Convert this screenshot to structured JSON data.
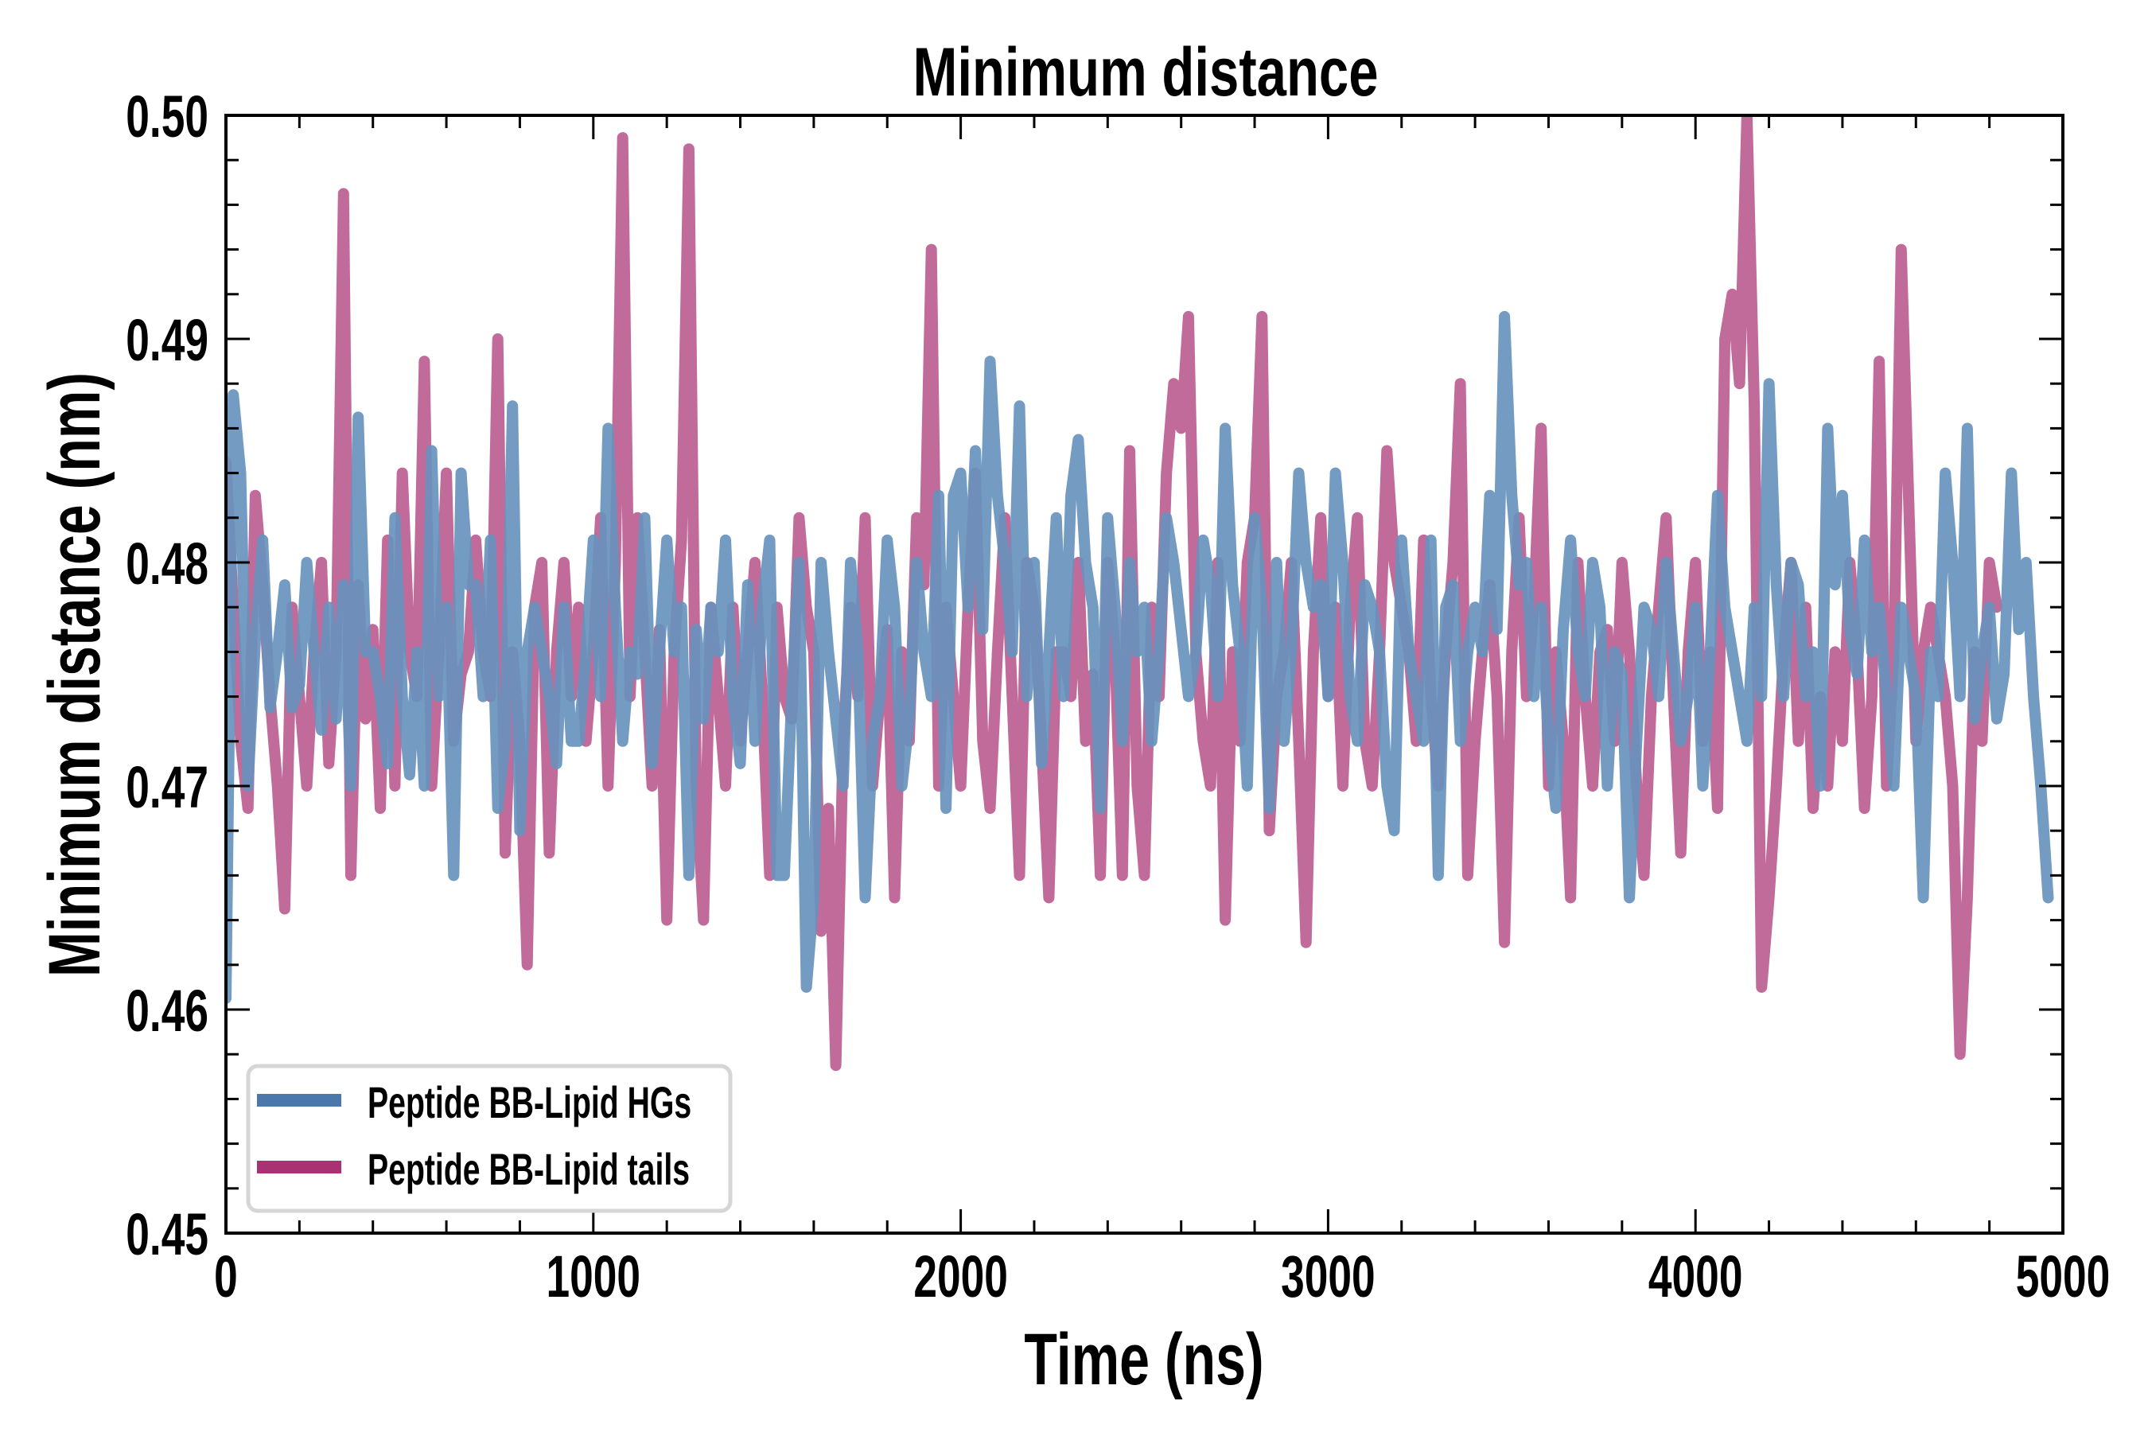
{
  "chart_data": {
    "type": "line",
    "title": "Minimum distance",
    "xlabel": "Time (ns)",
    "ylabel": "Minimum distance (nm)",
    "xlim": [
      0,
      5000
    ],
    "ylim": [
      0.45,
      0.5
    ],
    "x_ticks": [
      "0",
      "1000",
      "2000",
      "3000",
      "4000",
      "5000"
    ],
    "x_tick_values": [
      0,
      1000,
      2000,
      3000,
      4000,
      5000
    ],
    "x_minor_step": 200,
    "y_ticks": [
      "0.45",
      "0.46",
      "0.47",
      "0.48",
      "0.49",
      "0.50"
    ],
    "y_tick_values": [
      0.45,
      0.46,
      0.47,
      0.48,
      0.49,
      0.5
    ],
    "y_minor_step": 0.002,
    "grid": false,
    "legend_position": "lower-left",
    "x_step": 20,
    "series": [
      {
        "name": "Peptide BB-Lipid HGs",
        "color": "#4a78aa",
        "line_color": "#6893bd",
        "values": [
          0.4605,
          0.4875,
          0.484,
          0.47,
          0.4765,
          0.481,
          0.4735,
          0.476,
          0.479,
          0.4735,
          0.4745,
          0.48,
          0.476,
          0.4725,
          0.478,
          0.473,
          0.479,
          0.47,
          0.4865,
          0.476,
          0.476,
          0.474,
          0.471,
          0.482,
          0.474,
          0.4705,
          0.476,
          0.47,
          0.485,
          0.474,
          0.478,
          0.466,
          0.484,
          0.479,
          0.479,
          0.474,
          0.481,
          0.469,
          0.472,
          0.487,
          0.468,
          0.476,
          0.478,
          0.476,
          0.474,
          0.471,
          0.478,
          0.472,
          0.472,
          0.476,
          0.481,
          0.474,
          0.486,
          0.478,
          0.472,
          0.476,
          0.475,
          0.482,
          0.471,
          0.476,
          0.481,
          0.476,
          0.478,
          0.466,
          0.477,
          0.473,
          0.478,
          0.476,
          0.481,
          0.474,
          0.471,
          0.479,
          0.472,
          0.478,
          0.481,
          0.466,
          0.466,
          0.474,
          0.48,
          0.461,
          0.465,
          0.48,
          0.476,
          0.473,
          0.47,
          0.48,
          0.476,
          0.465,
          0.472,
          0.474,
          0.481,
          0.478,
          0.47,
          0.473,
          0.48,
          0.476,
          0.474,
          0.483,
          0.469,
          0.483,
          0.484,
          0.478,
          0.485,
          0.477,
          0.489,
          0.483,
          0.48,
          0.476,
          0.487,
          0.474,
          0.48,
          0.471,
          0.476,
          0.482,
          0.474,
          0.483,
          0.4855,
          0.48,
          0.478,
          0.469,
          0.482,
          0.478,
          0.472,
          0.48,
          0.476,
          0.478,
          0.472,
          0.476,
          0.482,
          0.48,
          0.477,
          0.474,
          0.476,
          0.481,
          0.479,
          0.474,
          0.486,
          0.479,
          0.476,
          0.47,
          0.482,
          0.478,
          0.469,
          0.48,
          0.472,
          0.476,
          0.484,
          0.48,
          0.478,
          0.479,
          0.474,
          0.484,
          0.48,
          0.474,
          0.472,
          0.479,
          0.478,
          0.476,
          0.47,
          0.468,
          0.481,
          0.476,
          0.474,
          0.472,
          0.481,
          0.466,
          0.478,
          0.479,
          0.472,
          0.476,
          0.478,
          0.476,
          0.483,
          0.477,
          0.491,
          0.483,
          0.479,
          0.48,
          0.474,
          0.478,
          0.472,
          0.469,
          0.477,
          0.481,
          0.476,
          0.474,
          0.48,
          0.478,
          0.47,
          0.476,
          0.475,
          0.465,
          0.472,
          0.478,
          0.477,
          0.474,
          0.48,
          0.476,
          0.472,
          0.474,
          0.478,
          0.47,
          0.476,
          0.483,
          0.478,
          0.476,
          0.474,
          0.472,
          0.478,
          0.474,
          0.488,
          0.479,
          0.474,
          0.48,
          0.479,
          0.474,
          0.476,
          0.47,
          0.486,
          0.479,
          0.483,
          0.477,
          0.475,
          0.481,
          0.476,
          0.478,
          0.474,
          0.47,
          0.478,
          0.476,
          0.474,
          0.465,
          0.476,
          0.474,
          0.484,
          0.48,
          0.474,
          0.486,
          0.473,
          0.476,
          0.478,
          0.473,
          0.475,
          0.484,
          0.477,
          0.48,
          0.474,
          0.47,
          0.465
        ]
      },
      {
        "name": "Peptide BB-Lipid tails",
        "color": "#a83272",
        "line_color": "#bb5e91",
        "values": [
          0.4845,
          0.478,
          0.472,
          0.469,
          0.483,
          0.479,
          0.474,
          0.47,
          0.4645,
          0.478,
          0.474,
          0.47,
          0.476,
          0.48,
          0.471,
          0.476,
          0.4965,
          0.466,
          0.479,
          0.473,
          0.477,
          0.469,
          0.481,
          0.47,
          0.484,
          0.476,
          0.474,
          0.489,
          0.47,
          0.476,
          0.484,
          0.472,
          0.475,
          0.476,
          0.481,
          0.476,
          0.474,
          0.49,
          0.467,
          0.476,
          0.472,
          0.462,
          0.478,
          0.48,
          0.467,
          0.476,
          0.48,
          0.474,
          0.478,
          0.472,
          0.476,
          0.482,
          0.47,
          0.48,
          0.499,
          0.474,
          0.482,
          0.476,
          0.47,
          0.477,
          0.464,
          0.476,
          0.481,
          0.4985,
          0.47,
          0.464,
          0.478,
          0.474,
          0.47,
          0.478,
          0.472,
          0.476,
          0.48,
          0.474,
          0.466,
          0.478,
          0.474,
          0.473,
          0.482,
          0.478,
          0.476,
          0.4635,
          0.469,
          0.4575,
          0.472,
          0.478,
          0.474,
          0.482,
          0.47,
          0.474,
          0.477,
          0.465,
          0.476,
          0.472,
          0.482,
          0.479,
          0.494,
          0.47,
          0.478,
          0.474,
          0.47,
          0.478,
          0.484,
          0.472,
          0.469,
          0.476,
          0.482,
          0.474,
          0.466,
          0.48,
          0.478,
          0.472,
          0.465,
          0.476,
          0.476,
          0.474,
          0.48,
          0.472,
          0.475,
          0.466,
          0.48,
          0.476,
          0.466,
          0.485,
          0.47,
          0.466,
          0.478,
          0.474,
          0.484,
          0.488,
          0.486,
          0.491,
          0.476,
          0.472,
          0.47,
          0.48,
          0.464,
          0.476,
          0.472,
          0.48,
          0.482,
          0.491,
          0.468,
          0.474,
          0.476,
          0.48,
          0.472,
          0.463,
          0.476,
          0.482,
          0.474,
          0.478,
          0.47,
          0.478,
          0.482,
          0.472,
          0.47,
          0.476,
          0.485,
          0.48,
          0.478,
          0.476,
          0.472,
          0.481,
          0.474,
          0.47,
          0.476,
          0.48,
          0.488,
          0.466,
          0.472,
          0.476,
          0.479,
          0.474,
          0.463,
          0.476,
          0.482,
          0.474,
          0.478,
          0.486,
          0.47,
          0.476,
          0.472,
          0.465,
          0.48,
          0.474,
          0.47,
          0.476,
          0.477,
          0.472,
          0.48,
          0.476,
          0.47,
          0.466,
          0.474,
          0.478,
          0.482,
          0.474,
          0.467,
          0.476,
          0.48,
          0.472,
          0.476,
          0.469,
          0.49,
          0.492,
          0.488,
          0.5,
          0.487,
          0.461,
          0.465,
          0.47,
          0.476,
          0.48,
          0.472,
          0.478,
          0.469,
          0.474,
          0.47,
          0.476,
          0.472,
          0.48,
          0.476,
          0.469,
          0.474,
          0.489,
          0.47,
          0.476,
          0.494,
          0.483,
          0.472,
          0.476,
          0.478,
          0.476,
          0.474,
          0.47,
          0.458,
          0.465,
          0.476,
          0.472,
          0.48,
          0.478
        ]
      }
    ]
  }
}
